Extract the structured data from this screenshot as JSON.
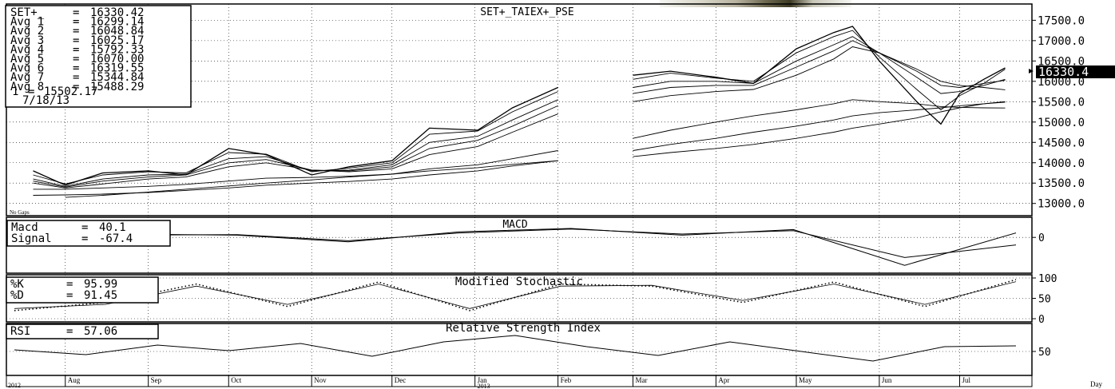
{
  "colors": {
    "line": "#000000",
    "grid": "#000000",
    "highlight": "#000000",
    "highlight_text": "#ffffff"
  },
  "main_panel": {
    "title": "SET+_TAIEX+_PSE",
    "legend": [
      {
        "label": "SET+_",
        "value": "16330.42"
      },
      {
        "label": "Avg 1",
        "value": "16299.14"
      },
      {
        "label": "Avg 2",
        "value": "16048.84"
      },
      {
        "label": "Avg 3",
        "value": "16025.17"
      },
      {
        "label": "Avg 4",
        "value": "15792.33"
      },
      {
        "label": "Avg 5",
        "value": "16070.00"
      },
      {
        "label": "Avg 6",
        "value": "16319.55"
      },
      {
        "label": "Avg 7",
        "value": "15344.84"
      },
      {
        "label": "Avg 8",
        "value": "15488.29"
      },
      {
        "label": "1",
        "value": "15502.17"
      }
    ],
    "date": "7/18/13",
    "note": "No Gaps",
    "last_price_label": "16330.4",
    "y_ticks": [
      "17500.0",
      "17000.0",
      "16500.0",
      "16000.0",
      "15500.0",
      "15000.0",
      "14500.0",
      "14000.0",
      "13500.0",
      "13000.0"
    ]
  },
  "macd_panel": {
    "title": "MACD",
    "legend": [
      {
        "label": "Macd",
        "value": "40.1"
      },
      {
        "label": "Signal",
        "value": "-67.4"
      }
    ],
    "y_ticks": [
      "0"
    ]
  },
  "stoch_panel": {
    "title": "Modified Stochastic",
    "legend": [
      {
        "label": "%K",
        "value": "95.99"
      },
      {
        "label": "%D",
        "value": "91.45"
      }
    ],
    "y_ticks": [
      "100",
      "50",
      "0"
    ]
  },
  "rsi_panel": {
    "title": "Relative Strength Index",
    "legend": [
      {
        "label": "RSI",
        "value": "57.06"
      }
    ],
    "y_ticks": [
      "50"
    ]
  },
  "x_axis": {
    "months": [
      "Aug",
      "Sep",
      "Oct",
      "Nov",
      "Dec",
      "Jan",
      "Feb",
      "Mar",
      "Apr",
      "May",
      "Jun",
      "Jul"
    ],
    "years": [
      "2012",
      "2013"
    ],
    "right_label": "Day"
  },
  "chart_data": {
    "type": "line",
    "title": "SET+_TAIEX+_PSE",
    "x": [
      "2012-07-20",
      "2012-08-01",
      "2012-08-15",
      "2012-09-01",
      "2012-09-15",
      "2012-10-01",
      "2012-10-15",
      "2012-11-01",
      "2012-11-15",
      "2012-12-01",
      "2012-12-15",
      "2013-01-02",
      "2013-01-15",
      "2013-02-01",
      "2013-02-15",
      "2013-03-01",
      "2013-03-15",
      "2013-04-01",
      "2013-04-15",
      "2013-05-01",
      "2013-05-15",
      "2013-05-22",
      "2013-06-01",
      "2013-06-15",
      "2013-06-24",
      "2013-07-01",
      "2013-07-10",
      "2013-07-18"
    ],
    "ylim": [
      12700,
      17900
    ],
    "series": [
      {
        "name": "SET+_",
        "values": [
          13800,
          13450,
          13750,
          13800,
          13700,
          14350,
          14200,
          13700,
          13900,
          14050,
          14850,
          14800,
          15350,
          15850,
          null,
          16150,
          16250,
          16100,
          15950,
          16800,
          17200,
          17350,
          16500,
          15500,
          14950,
          15700,
          16050,
          16330
        ]
      },
      {
        "name": "Avg 1",
        "values": [
          13700,
          13480,
          13700,
          13780,
          13750,
          14250,
          14210,
          13780,
          13870,
          14000,
          14700,
          14780,
          15250,
          15750,
          null,
          16050,
          16200,
          16080,
          16000,
          16700,
          17100,
          17250,
          16600,
          15800,
          15300,
          15650,
          15950,
          16299
        ]
      },
      {
        "name": "Avg 2",
        "values": [
          13600,
          13420,
          13600,
          13700,
          13720,
          14100,
          14150,
          13800,
          13820,
          13950,
          14500,
          14650,
          15050,
          15550,
          null,
          15850,
          16000,
          16000,
          15950,
          16500,
          16900,
          17100,
          16700,
          16100,
          15700,
          15750,
          15900,
          16049
        ]
      },
      {
        "name": "Avg 3",
        "values": [
          13550,
          13400,
          13550,
          13650,
          13700,
          14000,
          14080,
          13820,
          13800,
          13900,
          14350,
          14550,
          14900,
          15400,
          null,
          15700,
          15850,
          15900,
          15900,
          16350,
          16750,
          17000,
          16700,
          16250,
          15900,
          15850,
          15950,
          16025
        ]
      },
      {
        "name": "Avg 4",
        "values": [
          13500,
          13380,
          13480,
          13600,
          13650,
          13900,
          14000,
          13820,
          13780,
          13850,
          14200,
          14400,
          14750,
          15200,
          null,
          15500,
          15650,
          15750,
          15800,
          16150,
          16550,
          16850,
          16700,
          16300,
          16000,
          15900,
          15850,
          15792
        ]
      },
      {
        "name": "Avg 7",
        "values": [
          13350,
          13350,
          13380,
          13420,
          13470,
          13550,
          13620,
          13640,
          13670,
          13720,
          13850,
          13950,
          14100,
          14300,
          null,
          14600,
          14800,
          15000,
          15150,
          15300,
          15450,
          15550,
          15500,
          15450,
          15380,
          15360,
          15350,
          15345
        ]
      },
      {
        "name": "Avg 8",
        "values": [
          13200,
          13210,
          13230,
          13270,
          13320,
          13380,
          13450,
          13500,
          13540,
          13600,
          13700,
          13800,
          13920,
          14050,
          null,
          14300,
          14450,
          14600,
          14750,
          14900,
          15050,
          15150,
          15230,
          15300,
          15350,
          15400,
          15450,
          15488
        ]
      },
      {
        "name": "1",
        "values": [
          null,
          13150,
          13200,
          13280,
          13350,
          13430,
          13500,
          13580,
          13650,
          13720,
          13800,
          13880,
          13960,
          14050,
          null,
          14150,
          14250,
          14350,
          14450,
          14600,
          14750,
          14850,
          14950,
          15100,
          15250,
          15350,
          15450,
          15502
        ]
      }
    ],
    "macd": {
      "x_index": [
        0,
        3,
        6,
        9,
        12,
        15,
        18,
        21,
        24,
        27
      ],
      "macd": [
        -20,
        30,
        20,
        -40,
        50,
        80,
        20,
        70,
        -250,
        40
      ],
      "signal": [
        -30,
        20,
        25,
        -30,
        40,
        75,
        30,
        60,
        -180,
        -67
      ]
    },
    "stochastic": {
      "k": [
        20,
        40,
        85,
        30,
        90,
        20,
        85,
        80,
        40,
        90,
        30,
        96
      ],
      "d": [
        25,
        35,
        80,
        35,
        85,
        25,
        80,
        82,
        45,
        85,
        35,
        91
      ]
    },
    "rsi": {
      "values": [
        52,
        46,
        58,
        51,
        60,
        44,
        62,
        70,
        56,
        45,
        62,
        50,
        38,
        56,
        57
      ]
    }
  }
}
